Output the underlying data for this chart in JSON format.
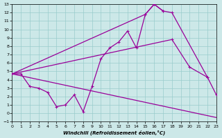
{
  "xlabel": "Windchill (Refroidissement éolien,°C)",
  "background_color": "#cce8e8",
  "grid_color": "#99cccc",
  "line_color": "#990099",
  "xlim": [
    0,
    23
  ],
  "ylim": [
    -1,
    13
  ],
  "xticks": [
    0,
    1,
    2,
    3,
    4,
    5,
    6,
    7,
    8,
    9,
    10,
    11,
    12,
    13,
    14,
    15,
    16,
    17,
    18,
    19,
    20,
    21,
    22,
    23
  ],
  "yticks": [
    -1,
    0,
    1,
    2,
    3,
    4,
    5,
    6,
    7,
    8,
    9,
    10,
    11,
    12,
    13
  ],
  "curve1_x": [
    0,
    1,
    2,
    3,
    4,
    5,
    6,
    7,
    8,
    9,
    10,
    11,
    12,
    13,
    14,
    15,
    16,
    17
  ],
  "curve1_y": [
    4.7,
    4.7,
    3.2,
    3.0,
    2.5,
    0.8,
    1.0,
    2.2,
    0.2,
    3.2,
    6.5,
    7.8,
    8.5,
    9.8,
    7.8,
    11.8,
    13.0,
    12.2
  ],
  "curve2_x": [
    0,
    15,
    16,
    17,
    18,
    22
  ],
  "curve2_y": [
    4.7,
    11.8,
    13.0,
    12.2,
    12.0,
    4.3
  ],
  "curve3_x": [
    0,
    18,
    20,
    22,
    23
  ],
  "curve3_y": [
    4.7,
    8.8,
    5.5,
    4.3,
    2.2
  ],
  "curve4_x": [
    0,
    23
  ],
  "curve4_y": [
    4.7,
    -0.5
  ]
}
